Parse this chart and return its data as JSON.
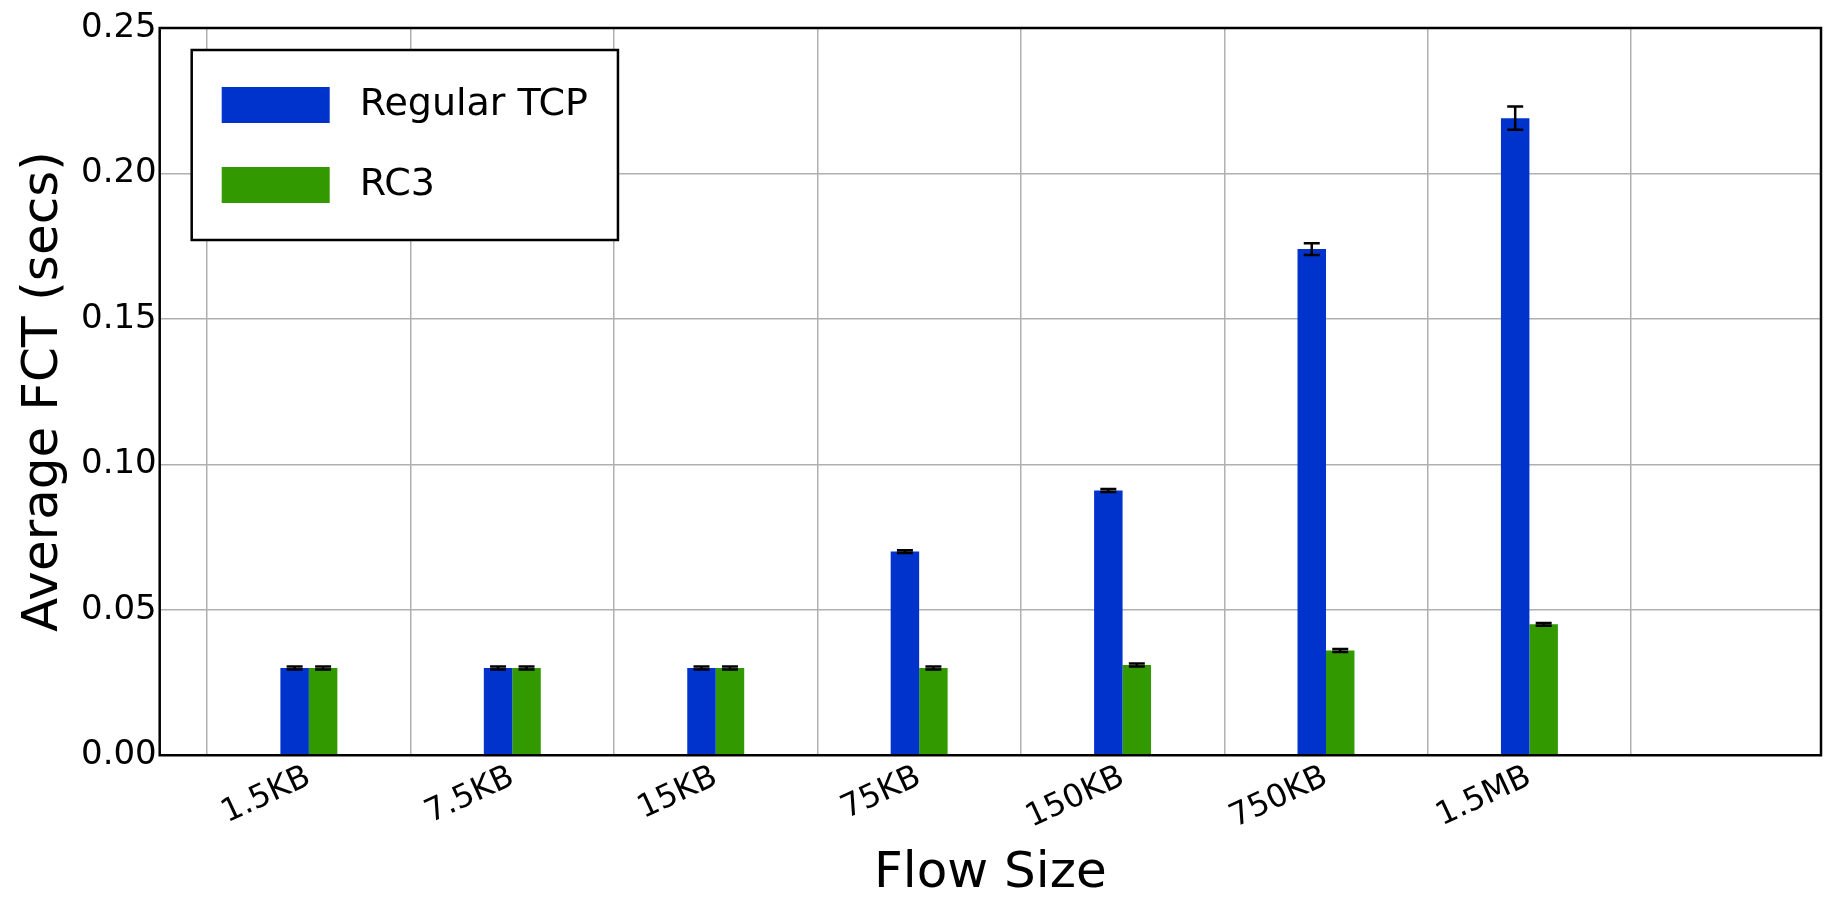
{
  "chart_data": {
    "type": "bar",
    "xlabel": "Flow Size",
    "ylabel": "Average FCT (secs)",
    "categories": [
      "1.5KB",
      "7.5KB",
      "15KB",
      "75KB",
      "150KB",
      "750KB",
      "1.5MB"
    ],
    "series": [
      {
        "name": "Regular TCP",
        "color": "#0033cc",
        "values": [
          0.03,
          0.03,
          0.03,
          0.07,
          0.091,
          0.174,
          0.219
        ],
        "errors": [
          0.0005,
          0.0005,
          0.0005,
          0.0005,
          0.0005,
          0.002,
          0.004
        ]
      },
      {
        "name": "RC3",
        "color": "#339900",
        "values": [
          0.03,
          0.03,
          0.03,
          0.03,
          0.031,
          0.036,
          0.045
        ],
        "errors": [
          0.0005,
          0.0005,
          0.0005,
          0.0005,
          0.0005,
          0.0005,
          0.0005
        ]
      }
    ],
    "ylim": [
      0,
      0.25
    ],
    "yticks": [
      {
        "value": 0,
        "label": "0.00"
      },
      {
        "value": 0.05,
        "label": "0.05"
      },
      {
        "value": 0.1,
        "label": "0.10"
      },
      {
        "value": 0.15,
        "label": "0.15"
      },
      {
        "value": 0.2,
        "label": "0.20"
      },
      {
        "value": 0.25,
        "label": "0.25"
      }
    ],
    "grid": true,
    "legend": "top left"
  }
}
